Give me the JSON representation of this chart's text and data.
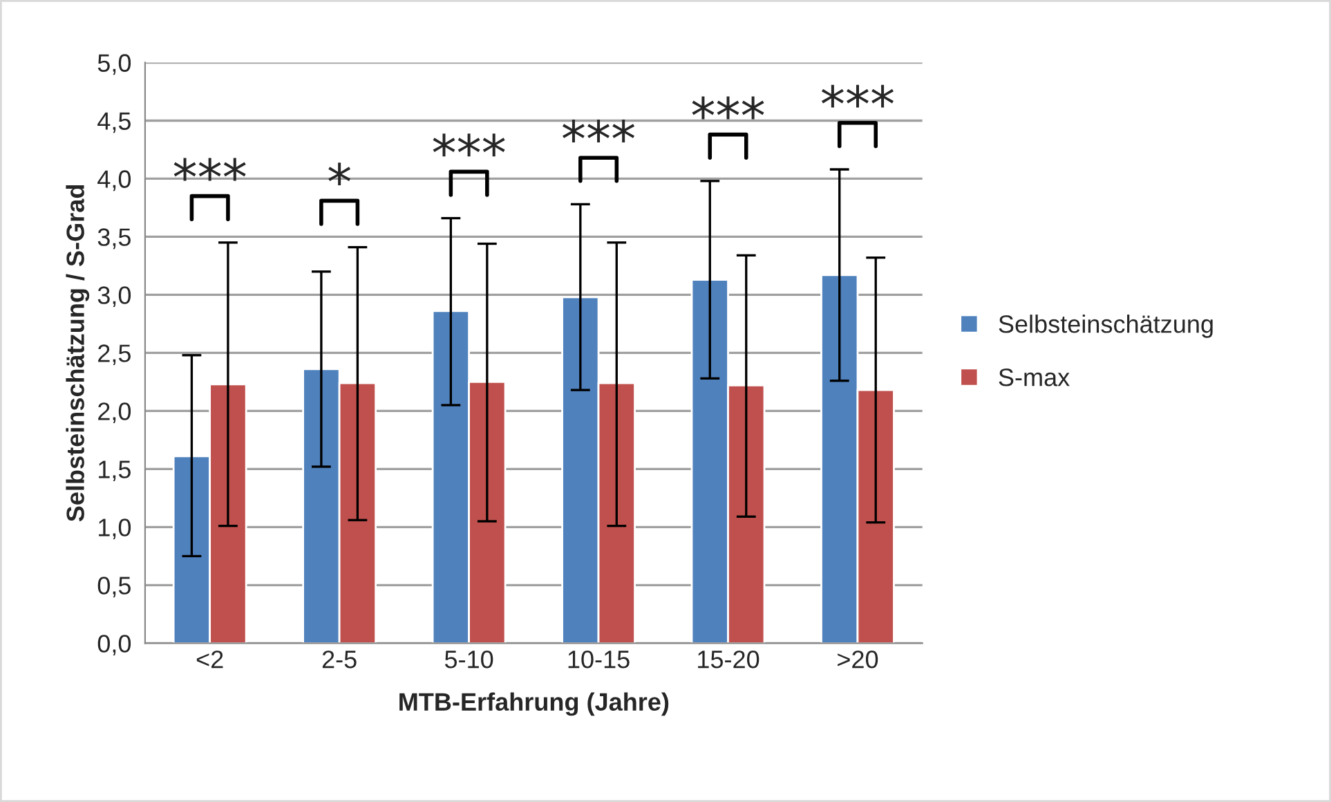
{
  "chart_data": {
    "type": "bar",
    "xlabel": "MTB-Erfahrung (Jahre)",
    "ylabel": "Selbsteinschätzung / S-Grad",
    "categories": [
      "<2",
      "2-5",
      "5-10",
      "10-15",
      "15-20",
      ">20"
    ],
    "series": [
      {
        "name": "Selbsteinschätzung",
        "color": "#4f81bd",
        "values": [
          1.61,
          2.36,
          2.86,
          2.98,
          3.13,
          3.17
        ],
        "errors": [
          [
            0.75,
            2.48
          ],
          [
            1.52,
            3.2
          ],
          [
            2.05,
            3.66
          ],
          [
            2.18,
            3.78
          ],
          [
            2.28,
            3.98
          ],
          [
            2.26,
            4.08
          ]
        ]
      },
      {
        "name": "S-max",
        "color": "#c0504d",
        "values": [
          2.23,
          2.24,
          2.25,
          2.24,
          2.22,
          2.18
        ],
        "errors": [
          [
            1.01,
            3.45
          ],
          [
            1.06,
            3.41
          ],
          [
            1.05,
            3.44
          ],
          [
            1.01,
            3.45
          ],
          [
            1.09,
            3.34
          ],
          [
            1.04,
            3.32
          ]
        ]
      }
    ],
    "ylim": [
      0,
      5
    ],
    "yticks": [
      {
        "value": 0,
        "label": "0,0"
      },
      {
        "value": 0.5,
        "label": "0,5"
      },
      {
        "value": 1,
        "label": "1,0"
      },
      {
        "value": 1.5,
        "label": "1,5"
      },
      {
        "value": 2,
        "label": "2,0"
      },
      {
        "value": 2.5,
        "label": "2,5"
      },
      {
        "value": 3,
        "label": "3,0"
      },
      {
        "value": 3.5,
        "label": "3,5"
      },
      {
        "value": 4,
        "label": "4,0"
      },
      {
        "value": 4.5,
        "label": "4,5"
      },
      {
        "value": 5,
        "label": "5,0"
      }
    ],
    "grid": "y",
    "legend": "right",
    "annotations": [
      "***",
      "*",
      "***",
      "***",
      "***",
      "***"
    ]
  }
}
